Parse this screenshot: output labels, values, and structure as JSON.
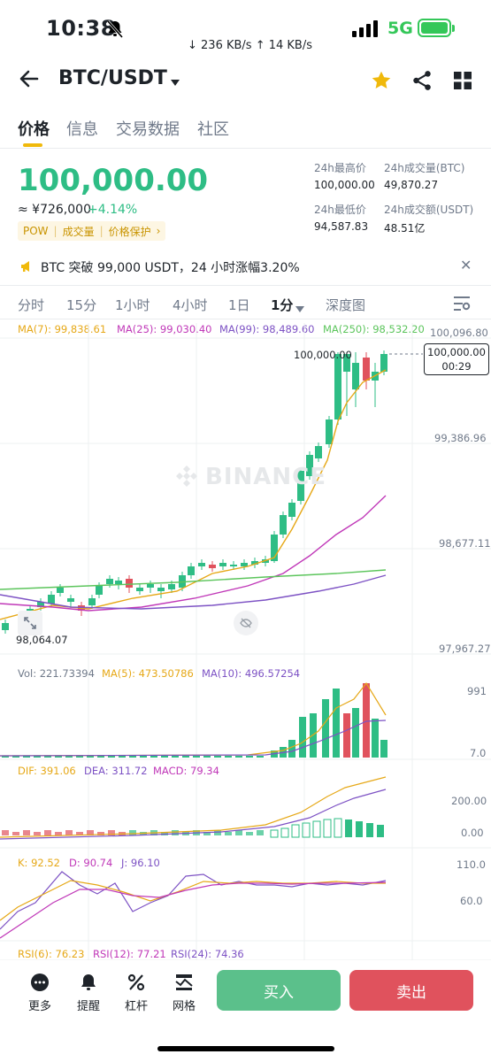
{
  "status": {
    "time": "10:38",
    "net_speed": "↓ 236 KB/s  ↑ 14 KB/s",
    "network": "5G"
  },
  "header": {
    "pair": "BTC/USDT"
  },
  "tabs": [
    "价格",
    "信息",
    "交易数据",
    "社区"
  ],
  "ticker": {
    "price": "100,000.00",
    "cny": "≈ ¥726,000",
    "change": "+4.14%",
    "tags": [
      "POW",
      "成交量",
      "价格保护"
    ],
    "stats": [
      {
        "label": "24h最高价",
        "value": "100,000.00"
      },
      {
        "label": "24h成交量(BTC)",
        "value": "49,870.27"
      },
      {
        "label": "24h最低价",
        "value": "94,587.83"
      },
      {
        "label": "24h成交额(USDT)",
        "value": "48.51亿"
      }
    ]
  },
  "announcement": "BTC 突破 99,000 USDT，24 小时涨幅3.20%",
  "intervals": [
    "分时",
    "15分",
    "1小时",
    "4小时",
    "1日",
    "1分",
    "深度图"
  ],
  "main_chart": {
    "ma": [
      {
        "label": "MA(7): 99,838.61",
        "color": "#e6a817"
      },
      {
        "label": "MA(25): 99,030.40",
        "color": "#c038b8"
      },
      {
        "label": "MA(99): 98,489.60",
        "color": "#7d52c4"
      },
      {
        "label": "MA(250): 98,532.20",
        "color": "#5cc55c"
      }
    ],
    "y_labels": [
      "100,096.80",
      "99,386.96",
      "98,677.11",
      "97,967.27"
    ],
    "last_price": "100,000.00",
    "countdown": "00:29",
    "high_mark": "100,000.00",
    "low_mark": "98,064.07",
    "watermark": "BINANCE"
  },
  "volume": {
    "labels": [
      {
        "text": "Vol: 221.73394",
        "color": "#707a8a"
      },
      {
        "text": "MA(5): 473.50786",
        "color": "#e6a817"
      },
      {
        "text": "MA(10): 496.57254",
        "color": "#7d52c4"
      }
    ],
    "y_labels": [
      "991",
      "7.0"
    ]
  },
  "macd": {
    "labels": [
      {
        "text": "DIF: 391.06",
        "color": "#e6a817"
      },
      {
        "text": "DEA: 311.72",
        "color": "#7d52c4"
      },
      {
        "text": "MACD: 79.34",
        "color": "#c038b8"
      }
    ],
    "y_labels": [
      "200.00",
      "0.00"
    ]
  },
  "kdj": {
    "labels": [
      {
        "text": "K: 92.52",
        "color": "#e6a817"
      },
      {
        "text": "D: 90.74",
        "color": "#c038b8"
      },
      {
        "text": "J: 96.10",
        "color": "#7d52c4"
      }
    ],
    "y_labels": [
      "110.0",
      "60.0"
    ]
  },
  "rsi": {
    "labels": [
      {
        "text": "RSI(6): 76.23",
        "color": "#e6a817"
      },
      {
        "text": "RSI(12): 77.21",
        "color": "#c038b8"
      },
      {
        "text": "RSI(24): 74.36",
        "color": "#7d52c4"
      }
    ]
  },
  "bottom_bar": {
    "items": [
      "更多",
      "提醒",
      "杠杆",
      "网格"
    ],
    "buy": "买入",
    "sell": "卖出"
  },
  "colors": {
    "up": "#2ebd85",
    "down": "#e0525d",
    "accent": "#f0b90b"
  }
}
